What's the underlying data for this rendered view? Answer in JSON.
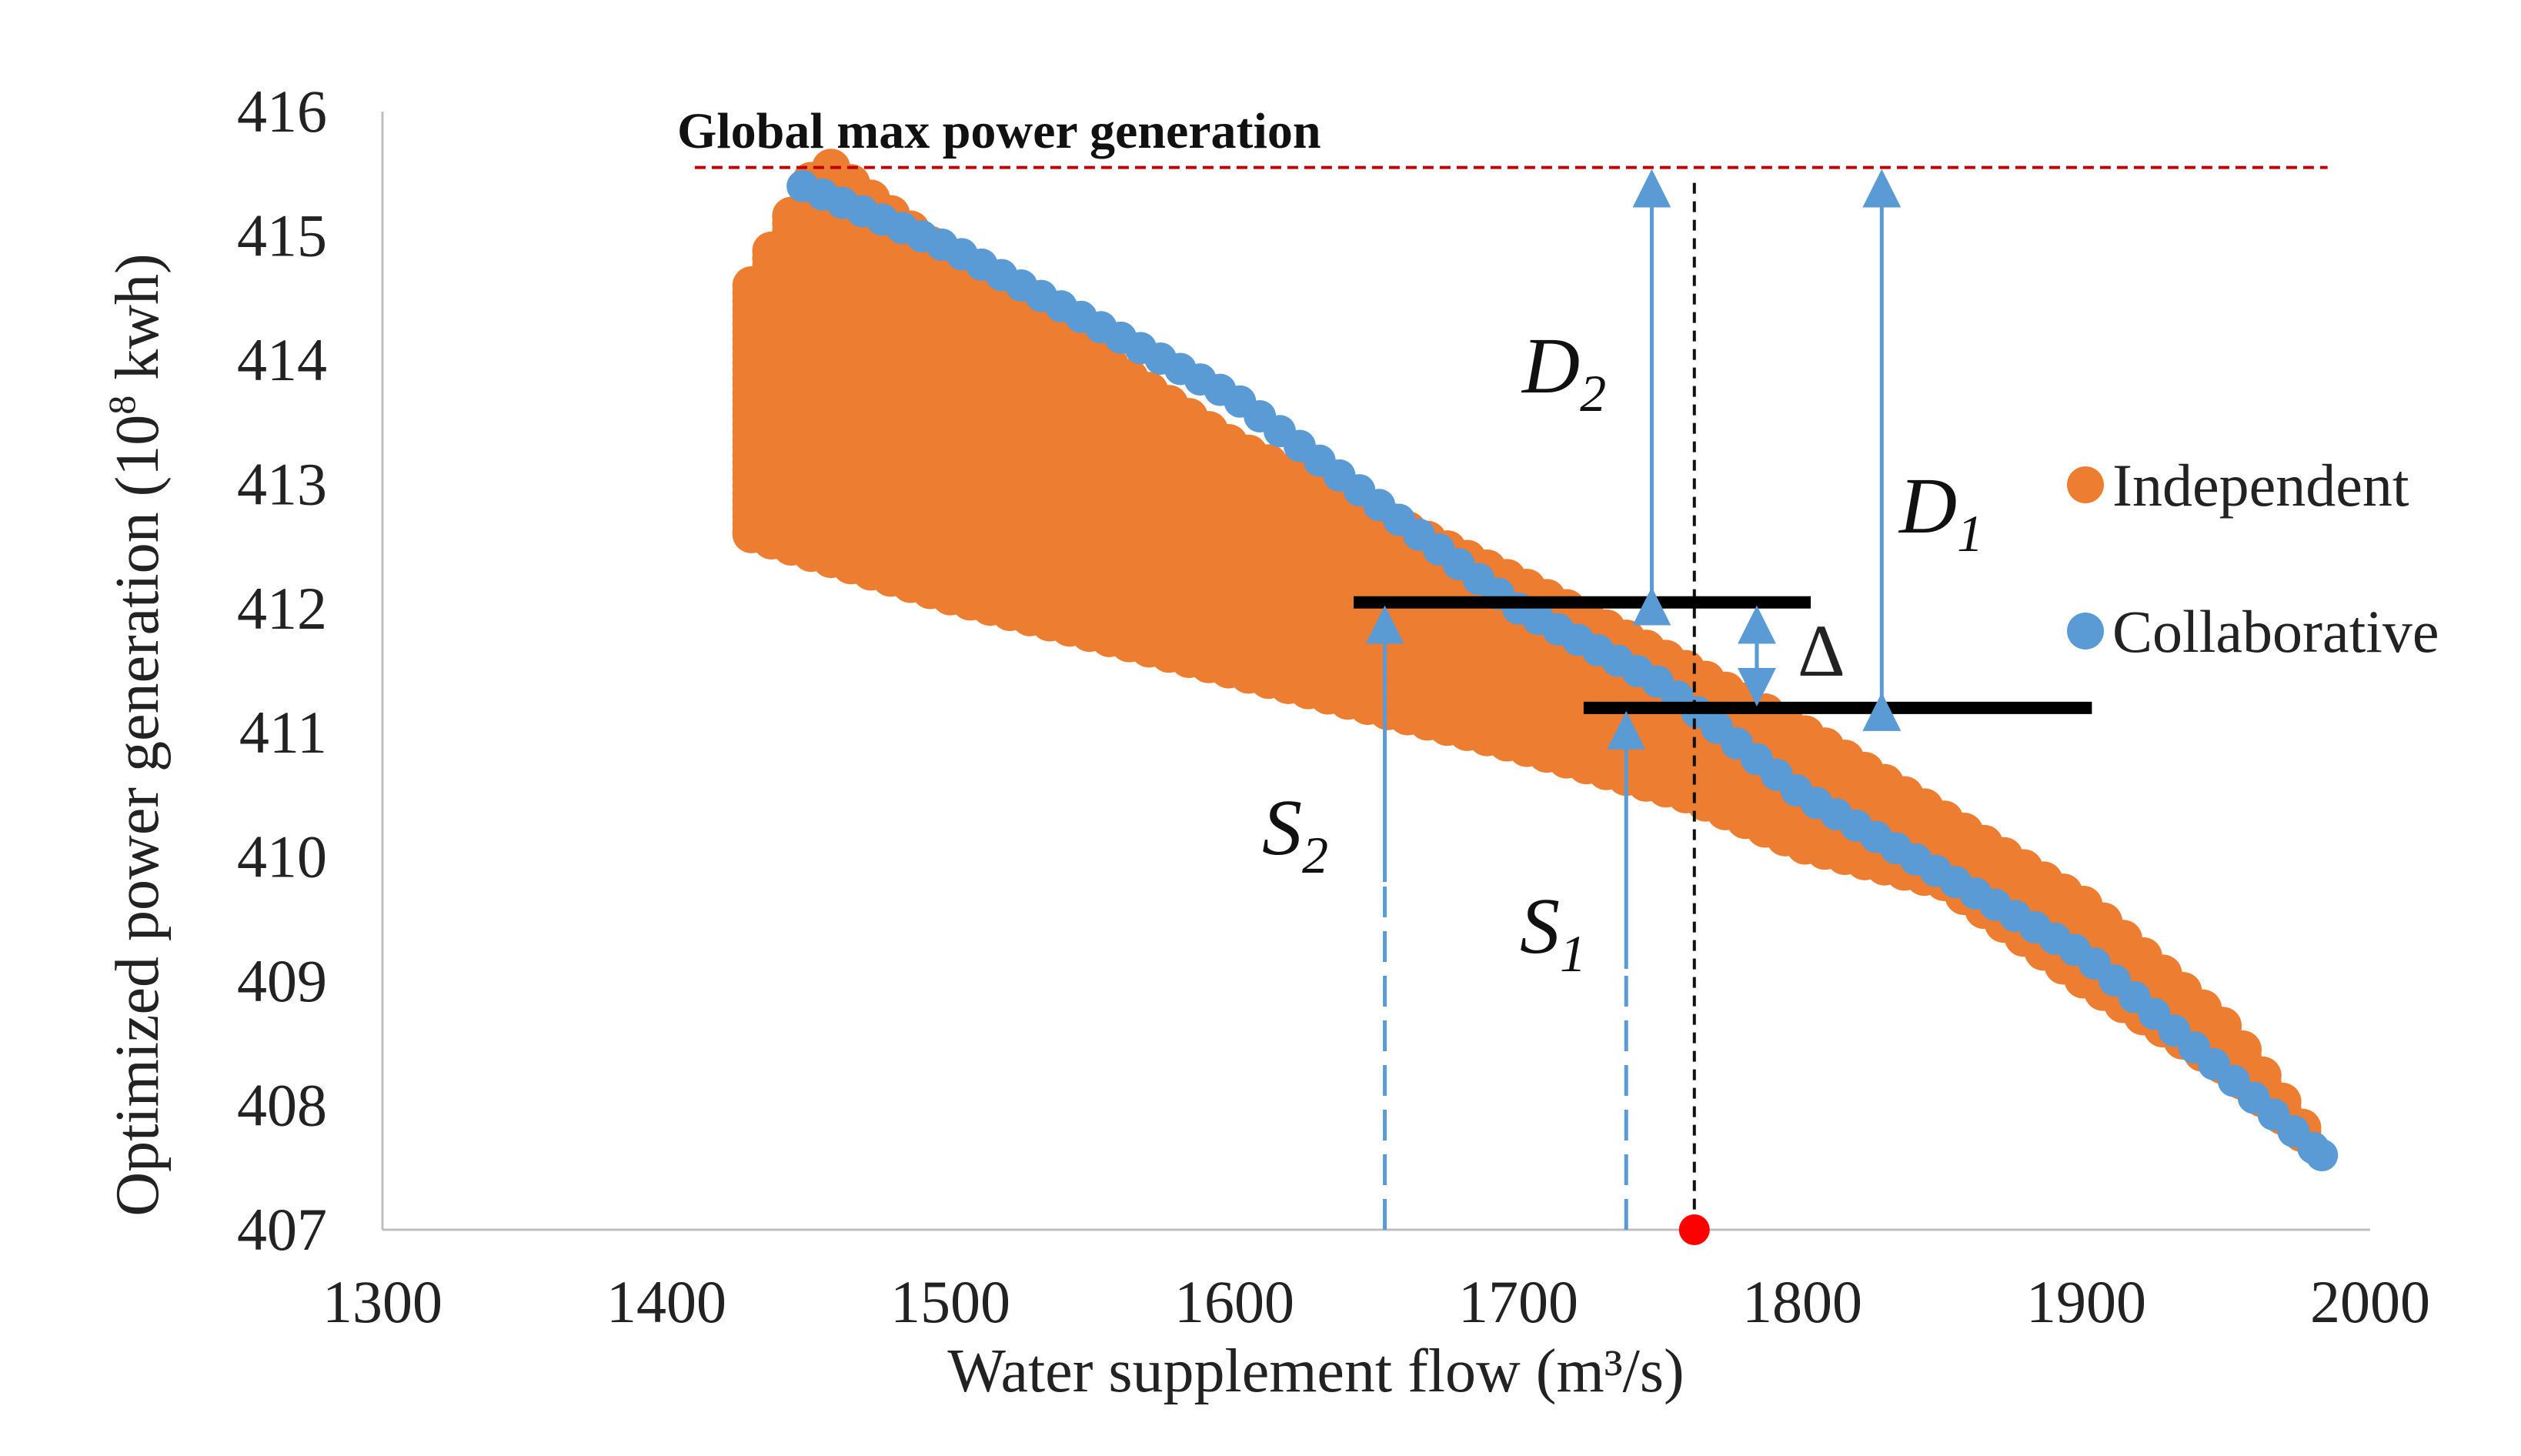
{
  "chart_data": {
    "type": "scatter",
    "title": "",
    "xlabel": "Water supplement flow (m³/s)",
    "ylabel_base": "Optimized power generation (10",
    "ylabel_sup": "8",
    "ylabel_tail": " kwh)",
    "xlim": [
      1300,
      2000
    ],
    "ylim": [
      407,
      416
    ],
    "xticks": [
      "1300",
      "1400",
      "1500",
      "1600",
      "1700",
      "1800",
      "1900",
      "2000"
    ],
    "yticks": [
      "407",
      "408",
      "409",
      "410",
      "411",
      "412",
      "413",
      "414",
      "415",
      "416"
    ],
    "legend_position": "right",
    "series": [
      {
        "name": "Independent",
        "color": "#ED7D31",
        "columns": {
          "x_start": 1430,
          "x_end": 1980,
          "x_step": 7,
          "top": [
            [
              1430,
              414.6
            ],
            [
              1455,
              415.6
            ],
            [
              1500,
              414.8
            ],
            [
              1600,
              413.3
            ],
            [
              1700,
              412.2
            ],
            [
              1760,
              411.5
            ],
            [
              1800,
              411.0
            ],
            [
              1850,
              410.3
            ],
            [
              1900,
              409.6
            ],
            [
              1950,
              408.6
            ],
            [
              1980,
              407.7
            ]
          ],
          "bottom": [
            [
              1430,
              412.6
            ],
            [
              1500,
              412.1
            ],
            [
              1600,
              411.5
            ],
            [
              1700,
              410.9
            ],
            [
              1760,
              410.5
            ],
            [
              1800,
              410.1
            ],
            [
              1850,
              409.8
            ],
            [
              1900,
              409.0
            ],
            [
              1950,
              408.3
            ],
            [
              1980,
              407.7
            ]
          ]
        }
      },
      {
        "name": "Collaborative",
        "color": "#5B9BD5",
        "line": [
          [
            1448,
            415.4
          ],
          [
            1500,
            414.9
          ],
          [
            1600,
            413.7
          ],
          [
            1700,
            412.0
          ],
          [
            1750,
            411.4
          ],
          [
            1800,
            410.5
          ],
          [
            1900,
            409.2
          ],
          [
            1983,
            407.6
          ]
        ],
        "x_step": 7
      }
    ],
    "reference_lines": {
      "global_max": {
        "y": 415.55,
        "x_from": 1410,
        "x_to": 1985,
        "label": "Global max power generation",
        "color": "#C00000"
      },
      "vertical_dashed_x": 1762,
      "red_point": {
        "x": 1762,
        "y": 407,
        "color": "#FF0000"
      },
      "level_high": {
        "y": 412.05,
        "x_from": 1642,
        "x_to": 1803
      },
      "level_low": {
        "y": 411.2,
        "x_from": 1723,
        "x_to": 1902
      }
    },
    "annotations": {
      "S2": {
        "letter": "S",
        "sub": "2",
        "arrow_x": 1653,
        "arrow_y_from": 407,
        "arrow_y_to": 412.05,
        "dash_to": 409.8
      },
      "S1": {
        "letter": "S",
        "sub": "1",
        "arrow_x": 1738,
        "arrow_y_from": 407,
        "arrow_y_to": 411.2,
        "dash_to": 409.1
      },
      "D2": {
        "letter": "D",
        "sub": "2",
        "arrow_x": 1747,
        "arrow_y_from": 415.55,
        "arrow_y_to": 412.05
      },
      "D1": {
        "letter": "D",
        "sub": "1",
        "arrow_x": 1828,
        "arrow_y_from": 415.55,
        "arrow_y_to": 411.2
      },
      "delta": {
        "symbol": "Δ",
        "arrow_x": 1784,
        "arrow_y_from": 412.05,
        "arrow_y_to": 411.2
      }
    }
  }
}
